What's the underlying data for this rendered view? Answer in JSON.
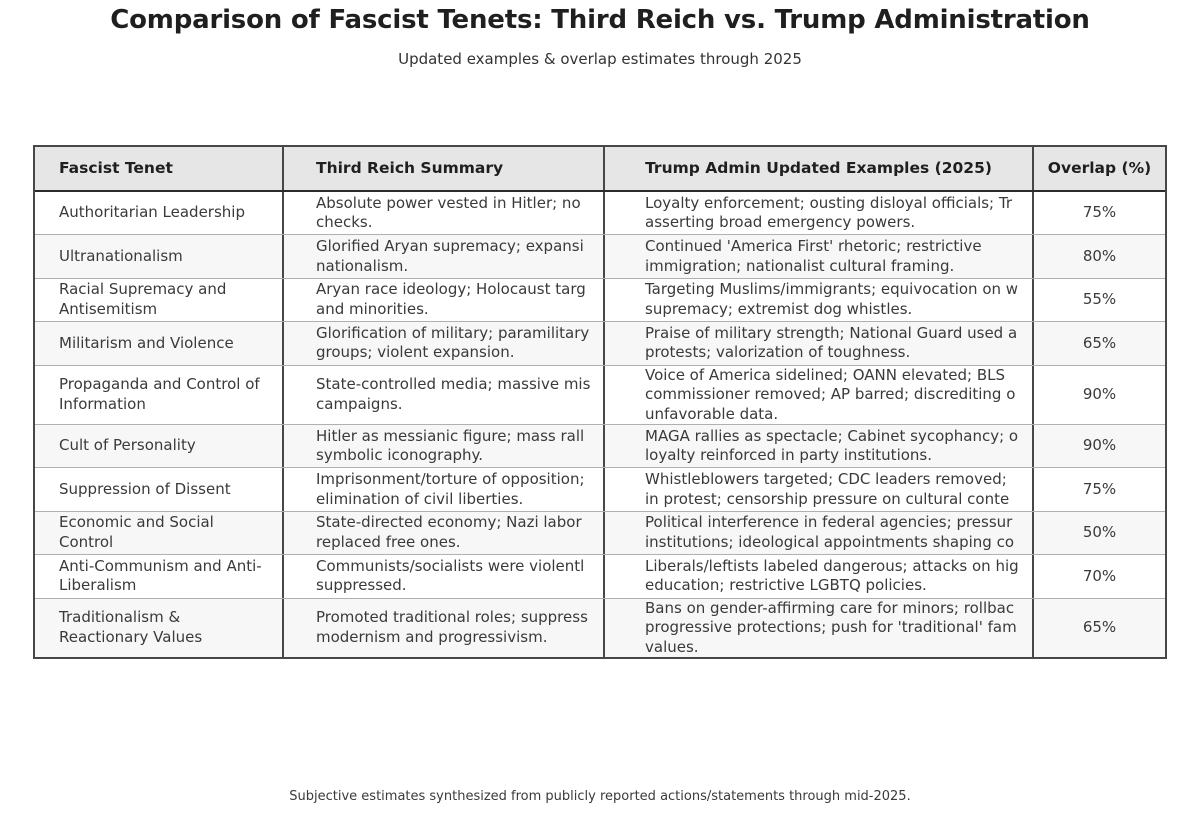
{
  "header": {
    "title": "Comparison of Fascist Tenets: Third Reich vs. Trump Administration",
    "subtitle": "Updated examples & overlap estimates through 2025"
  },
  "footer": {
    "note": "Subjective estimates synthesized from publicly reported actions/statements through mid-2025."
  },
  "colors": {
    "header_bg": "#e6e6e6",
    "alt_row_bg": "#f7f7f7",
    "frame_border": "#474747",
    "row_line": "#b0b0b0",
    "text": "#3a3a3a"
  },
  "chart_data": {
    "type": "table",
    "title": "Comparison of Fascist Tenets: Third Reich vs. Trump Administration",
    "subtitle": "Updated examples & overlap estimates through 2025",
    "footnote": "Subjective estimates synthesized from publicly reported actions/statements through mid-2025.",
    "columns": [
      "Fascist Tenet",
      "Third Reich Summary",
      "Trump Admin Updated Examples (2025)",
      "Overlap (%)"
    ],
    "overlap_values": [
      75,
      80,
      55,
      65,
      90,
      90,
      75,
      50,
      70,
      65
    ],
    "rows": [
      {
        "tenet": "Authoritarian Leadership",
        "third_reich": "Absolute power vested in Hitler; no\nchecks.",
        "trump_admin": "Loyalty enforcement; ousting disloyal officials; Tr\nasserting broad emergency powers.",
        "overlap": "75%"
      },
      {
        "tenet": "Ultranationalism",
        "third_reich": "Glorified Aryan supremacy; expansi\nnationalism.",
        "trump_admin": "Continued 'America First' rhetoric; restrictive\nimmigration; nationalist cultural framing.",
        "overlap": "80%"
      },
      {
        "tenet": "Racial Supremacy and\nAntisemitism",
        "third_reich": "Aryan race ideology; Holocaust targ\nand minorities.",
        "trump_admin": "Targeting Muslims/immigrants; equivocation on w\nsupremacy; extremist dog whistles.",
        "overlap": "55%"
      },
      {
        "tenet": "Militarism and Violence",
        "third_reich": "Glorification of military; paramilitary\ngroups; violent expansion.",
        "trump_admin": "Praise of military strength; National Guard used a\nprotests; valorization of toughness.",
        "overlap": "65%"
      },
      {
        "tenet": "Propaganda and Control of\nInformation",
        "third_reich": "State-controlled media; massive mis\ncampaigns.",
        "trump_admin": "Voice of America sidelined; OANN elevated; BLS\ncommissioner removed; AP barred; discrediting o\nunfavorable data.",
        "overlap": "90%"
      },
      {
        "tenet": "Cult of Personality",
        "third_reich": "Hitler as messianic figure; mass rall\nsymbolic iconography.",
        "trump_admin": "MAGA rallies as spectacle; Cabinet sycophancy; o\nloyalty reinforced in party institutions.",
        "overlap": "90%"
      },
      {
        "tenet": "Suppression of Dissent",
        "third_reich": "Imprisonment/torture of opposition;\nelimination of civil liberties.",
        "trump_admin": "Whistleblowers targeted; CDC leaders removed;\nin protest; censorship pressure on cultural conte",
        "overlap": "75%"
      },
      {
        "tenet": "Economic and Social\nControl",
        "third_reich": "State-directed economy; Nazi labor\nreplaced free ones.",
        "trump_admin": "Political interference in federal agencies; pressur\ninstitutions; ideological appointments shaping co",
        "overlap": "50%"
      },
      {
        "tenet": "Anti-Communism and Anti-\nLiberalism",
        "third_reich": "Communists/socialists were violentl\nsuppressed.",
        "trump_admin": "Liberals/leftists labeled dangerous; attacks on hig\neducation; restrictive LGBTQ policies.",
        "overlap": "70%"
      },
      {
        "tenet": "Traditionalism &\nReactionary Values",
        "third_reich": "Promoted traditional roles; suppress\nmodernism and progressivism.",
        "trump_admin": "Bans on gender-affirming care for minors; rollbac\nprogressive protections; push for 'traditional' fam\nvalues.",
        "overlap": "65%"
      }
    ]
  }
}
